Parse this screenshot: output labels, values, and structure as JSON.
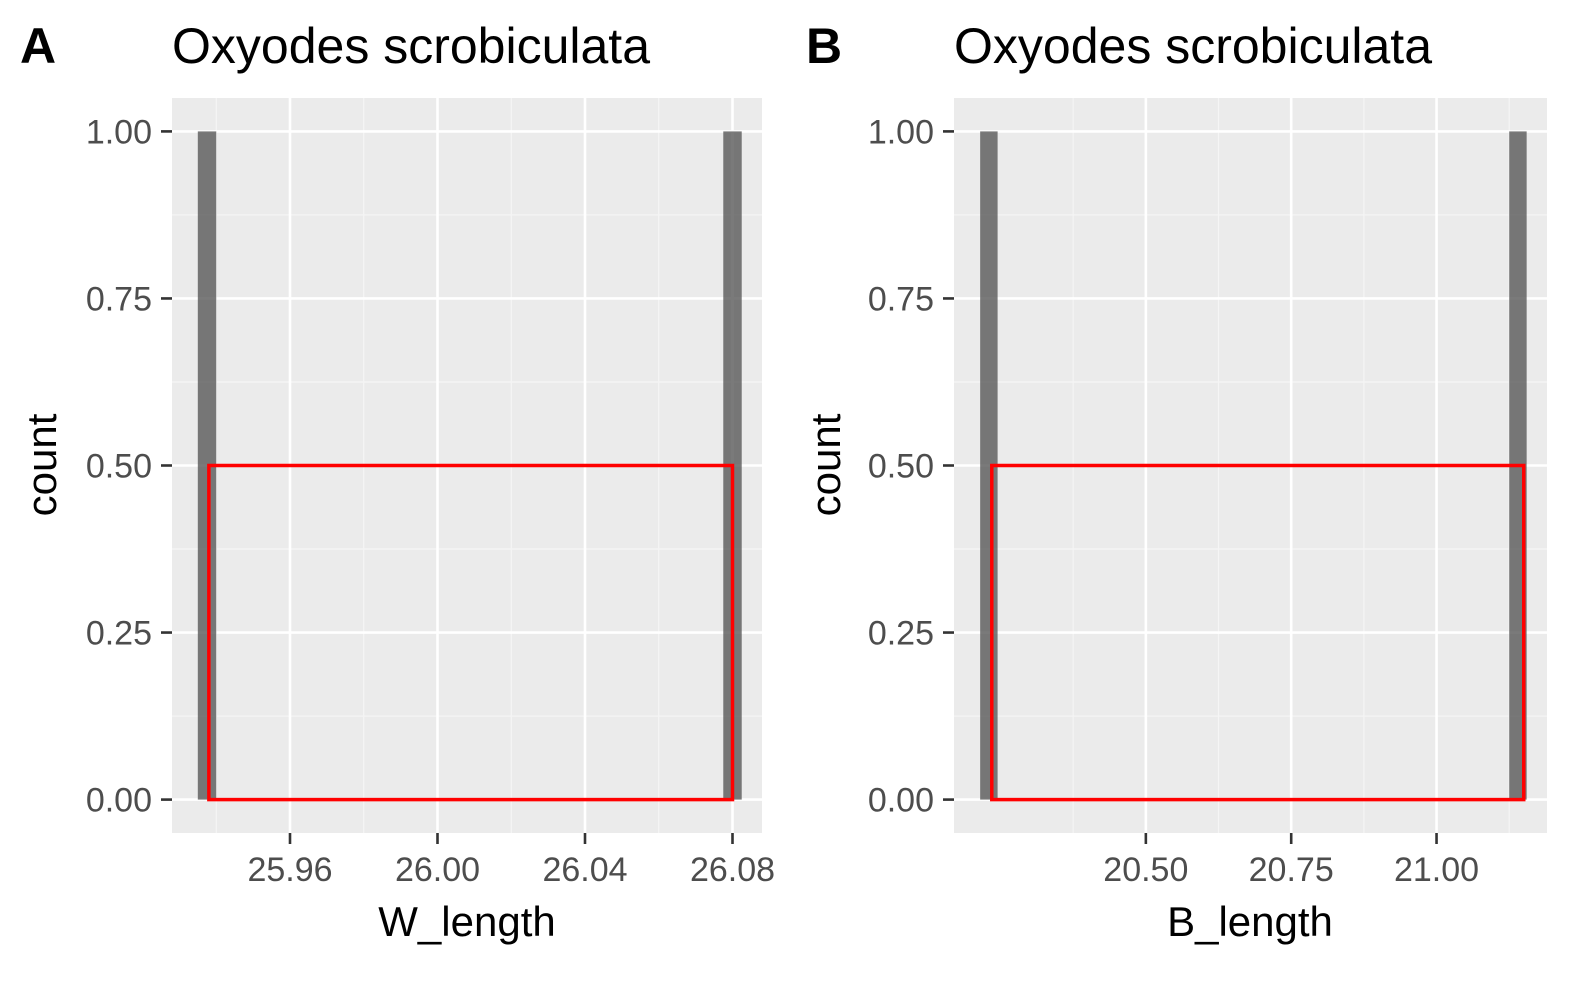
{
  "colors": {
    "panel_background": "#ebebeb",
    "grid_major": "#ffffff",
    "grid_minor": "#f5f5f5",
    "bar_fill": "#595959",
    "bar_alpha": 0.8,
    "overlay_rect": "#ff0000",
    "tick_text": "#4d4d4d",
    "tick_mark": "#333333"
  },
  "chart_data": [
    {
      "type": "bar",
      "tag": "A",
      "title": "Oxyodes scrobiculata",
      "xlabel": "W_length",
      "ylabel": "count",
      "xlim": [
        25.928,
        26.088
      ],
      "ylim": [
        -0.05,
        1.05
      ],
      "x_ticks": [
        25.96,
        26.0,
        26.04,
        26.08
      ],
      "x_tick_labels": [
        "25.96",
        "26.00",
        "26.04",
        "26.08"
      ],
      "y_ticks": [
        0,
        0.25,
        0.5,
        0.75,
        1
      ],
      "y_tick_labels": [
        "0.00",
        "0.25",
        "0.50",
        "0.75",
        "1.00"
      ],
      "grid": true,
      "bars": [
        {
          "x_start": 25.935,
          "x_end": 25.94,
          "count": 1
        },
        {
          "x_start": 26.0775,
          "x_end": 26.0825,
          "count": 1
        }
      ],
      "overlay_rectangle": {
        "x_start": 25.938,
        "x_end": 26.08,
        "y_start": 0,
        "y_end": 0.5
      }
    },
    {
      "type": "bar",
      "tag": "B",
      "title": "Oxyodes scrobiculata",
      "xlabel": "B_length",
      "ylabel": "count",
      "xlim": [
        20.17,
        21.19
      ],
      "ylim": [
        -0.05,
        1.05
      ],
      "x_ticks": [
        20.5,
        20.75,
        21.0
      ],
      "x_tick_labels": [
        "20.50",
        "20.75",
        "21.00"
      ],
      "y_ticks": [
        0,
        0.25,
        0.5,
        0.75,
        1
      ],
      "y_tick_labels": [
        "0.00",
        "0.25",
        "0.50",
        "0.75",
        "1.00"
      ],
      "grid": true,
      "bars": [
        {
          "x_start": 20.215,
          "x_end": 20.245,
          "count": 1
        },
        {
          "x_start": 21.125,
          "x_end": 21.155,
          "count": 1
        }
      ],
      "overlay_rectangle": {
        "x_start": 20.235,
        "x_end": 21.15,
        "y_start": 0,
        "y_end": 0.5
      }
    }
  ]
}
